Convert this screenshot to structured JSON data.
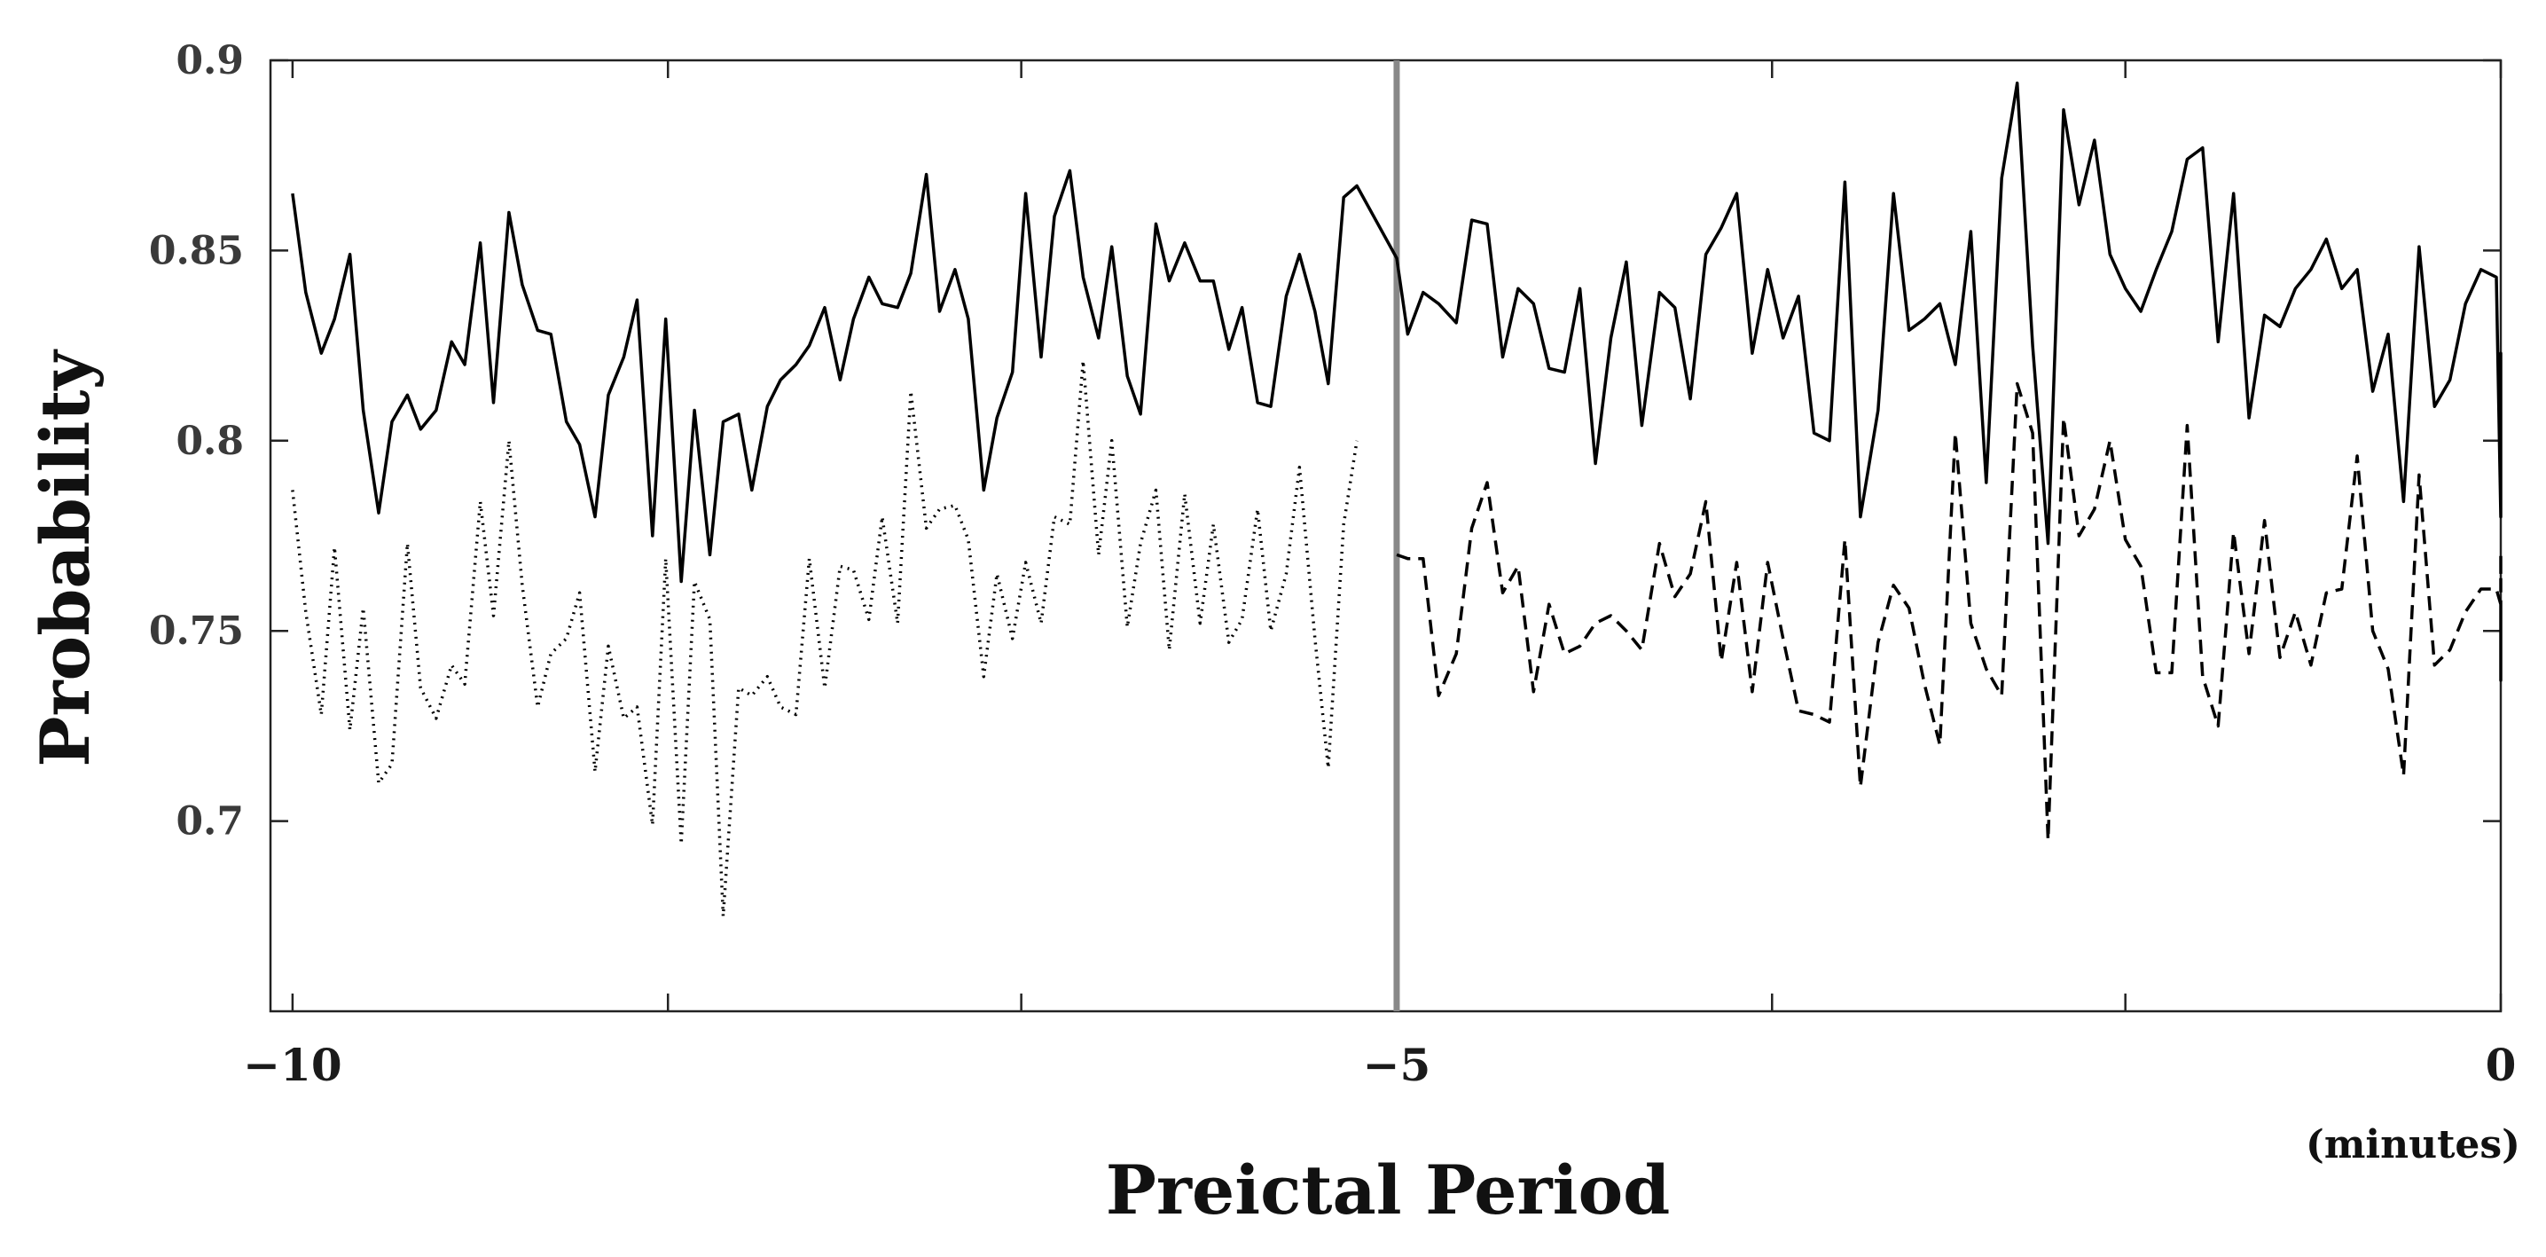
{
  "chart_data": {
    "type": "line",
    "xlabel": "Preictal Period",
    "ylabel": "Probability",
    "x_unit": "(minutes)",
    "xlim": [
      -10.1,
      0
    ],
    "ylim": [
      0.65,
      0.9
    ],
    "x_ticks": [
      -10,
      -5,
      0
    ],
    "x_tick_labels": [
      "−10",
      "−5",
      "0"
    ],
    "x_minor_ticks": [
      -10,
      -8.3,
      -6.7,
      -5,
      -3.3,
      -1.7,
      0
    ],
    "y_ticks": [
      0.7,
      0.75,
      0.8,
      0.85,
      0.9
    ],
    "y_tick_labels": [
      "0.7",
      "0.75",
      "0.8",
      "0.85",
      "0.9"
    ],
    "grid": false,
    "vertical_line": {
      "x": -5,
      "color": "#888888"
    },
    "series": [
      {
        "style": "solid",
        "color": "#000000",
        "points": [
          [
            -10.0,
            0.865
          ],
          [
            -9.94,
            0.839
          ],
          [
            -9.87,
            0.823
          ],
          [
            -9.81,
            0.832
          ],
          [
            -9.74,
            0.849
          ],
          [
            -9.68,
            0.808
          ],
          [
            -9.61,
            0.781
          ],
          [
            -9.55,
            0.805
          ],
          [
            -9.48,
            0.812
          ],
          [
            -9.42,
            0.803
          ],
          [
            -9.35,
            0.808
          ],
          [
            -9.28,
            0.826
          ],
          [
            -9.22,
            0.82
          ],
          [
            -9.15,
            0.852
          ],
          [
            -9.09,
            0.81
          ],
          [
            -9.02,
            0.86
          ],
          [
            -8.96,
            0.841
          ],
          [
            -8.89,
            0.829
          ],
          [
            -8.83,
            0.828
          ],
          [
            -8.76,
            0.805
          ],
          [
            -8.7,
            0.799
          ],
          [
            -8.63,
            0.78
          ],
          [
            -8.57,
            0.812
          ],
          [
            -8.5,
            0.822
          ],
          [
            -8.44,
            0.837
          ],
          [
            -8.37,
            0.775
          ],
          [
            -8.31,
            0.832
          ],
          [
            -8.24,
            0.763
          ],
          [
            -8.18,
            0.808
          ],
          [
            -8.11,
            0.77
          ],
          [
            -8.05,
            0.805
          ],
          [
            -7.98,
            0.807
          ],
          [
            -7.92,
            0.787
          ],
          [
            -7.85,
            0.809
          ],
          [
            -7.79,
            0.816
          ],
          [
            -7.72,
            0.82
          ],
          [
            -7.66,
            0.825
          ],
          [
            -7.59,
            0.835
          ],
          [
            -7.52,
            0.816
          ],
          [
            -7.46,
            0.832
          ],
          [
            -7.39,
            0.843
          ],
          [
            -7.33,
            0.836
          ],
          [
            -7.26,
            0.835
          ],
          [
            -7.2,
            0.844
          ],
          [
            -7.13,
            0.87
          ],
          [
            -7.07,
            0.834
          ],
          [
            -7.0,
            0.845
          ],
          [
            -6.94,
            0.832
          ],
          [
            -6.87,
            0.787
          ],
          [
            -6.81,
            0.806
          ],
          [
            -6.74,
            0.818
          ],
          [
            -6.68,
            0.865
          ],
          [
            -6.61,
            0.822
          ],
          [
            -6.55,
            0.859
          ],
          [
            -6.48,
            0.871
          ],
          [
            -6.42,
            0.843
          ],
          [
            -6.35,
            0.827
          ],
          [
            -6.29,
            0.851
          ],
          [
            -6.22,
            0.817
          ],
          [
            -6.16,
            0.807
          ],
          [
            -6.09,
            0.857
          ],
          [
            -6.03,
            0.842
          ],
          [
            -5.96,
            0.852
          ],
          [
            -5.89,
            0.842
          ],
          [
            -5.83,
            0.842
          ],
          [
            -5.76,
            0.824
          ],
          [
            -5.7,
            0.835
          ],
          [
            -5.63,
            0.81
          ],
          [
            -5.57,
            0.809
          ],
          [
            -5.5,
            0.838
          ],
          [
            -5.44,
            0.849
          ],
          [
            -5.37,
            0.834
          ],
          [
            -5.31,
            0.815
          ],
          [
            -5.24,
            0.864
          ],
          [
            -5.18,
            0.867
          ],
          [
            -5.0,
            0.848
          ],
          [
            -4.95,
            0.828
          ],
          [
            -4.88,
            0.839
          ],
          [
            -4.81,
            0.836
          ],
          [
            -4.73,
            0.831
          ],
          [
            -4.66,
            0.858
          ],
          [
            -4.59,
            0.857
          ],
          [
            -4.52,
            0.822
          ],
          [
            -4.45,
            0.84
          ],
          [
            -4.38,
            0.836
          ],
          [
            -4.31,
            0.819
          ],
          [
            -4.24,
            0.818
          ],
          [
            -4.17,
            0.84
          ],
          [
            -4.1,
            0.794
          ],
          [
            -4.03,
            0.827
          ],
          [
            -3.96,
            0.847
          ],
          [
            -3.89,
            0.804
          ],
          [
            -3.81,
            0.839
          ],
          [
            -3.74,
            0.835
          ],
          [
            -3.67,
            0.811
          ],
          [
            -3.6,
            0.849
          ],
          [
            -3.53,
            0.856
          ],
          [
            -3.46,
            0.865
          ],
          [
            -3.39,
            0.823
          ],
          [
            -3.32,
            0.845
          ],
          [
            -3.25,
            0.827
          ],
          [
            -3.18,
            0.838
          ],
          [
            -3.11,
            0.802
          ],
          [
            -3.04,
            0.8
          ],
          [
            -2.97,
            0.868
          ],
          [
            -2.9,
            0.78
          ],
          [
            -2.82,
            0.808
          ],
          [
            -2.75,
            0.865
          ],
          [
            -2.68,
            0.829
          ],
          [
            -2.61,
            0.832
          ],
          [
            -2.54,
            0.836
          ],
          [
            -2.47,
            0.82
          ],
          [
            -2.4,
            0.855
          ],
          [
            -2.33,
            0.789
          ],
          [
            -2.26,
            0.869
          ],
          [
            -2.19,
            0.894
          ],
          [
            -2.12,
            0.825
          ],
          [
            -2.05,
            0.773
          ],
          [
            -1.98,
            0.887
          ],
          [
            -1.91,
            0.862
          ],
          [
            -1.84,
            0.879
          ],
          [
            -1.77,
            0.849
          ],
          [
            -1.7,
            0.84
          ],
          [
            -1.63,
            0.834
          ],
          [
            -1.56,
            0.845
          ],
          [
            -1.49,
            0.855
          ],
          [
            -1.42,
            0.874
          ],
          [
            -1.35,
            0.877
          ],
          [
            -1.28,
            0.826
          ],
          [
            -1.21,
            0.865
          ],
          [
            -1.14,
            0.806
          ],
          [
            -1.07,
            0.833
          ],
          [
            -1.0,
            0.83
          ],
          [
            -0.93,
            0.84
          ],
          [
            -0.86,
            0.845
          ],
          [
            -0.79,
            0.853
          ],
          [
            -0.72,
            0.84
          ],
          [
            -0.65,
            0.845
          ],
          [
            -0.58,
            0.813
          ],
          [
            -0.51,
            0.828
          ],
          [
            -0.44,
            0.784
          ],
          [
            -0.37,
            0.851
          ],
          [
            -0.3,
            0.809
          ],
          [
            -0.23,
            0.816
          ],
          [
            -0.16,
            0.836
          ],
          [
            -0.09,
            0.845
          ],
          [
            -0.02,
            0.843
          ],
          [
            0.05,
            0.78
          ],
          [
            0.12,
            0.823
          ],
          [
            0.18,
            0.811
          ]
        ]
      },
      {
        "style": "dotted",
        "color": "#000000",
        "points": [
          [
            -10.0,
            0.787
          ],
          [
            -9.94,
            0.755
          ],
          [
            -9.87,
            0.728
          ],
          [
            -9.81,
            0.772
          ],
          [
            -9.74,
            0.724
          ],
          [
            -9.68,
            0.756
          ],
          [
            -9.61,
            0.71
          ],
          [
            -9.55,
            0.715
          ],
          [
            -9.48,
            0.773
          ],
          [
            -9.42,
            0.735
          ],
          [
            -9.35,
            0.727
          ],
          [
            -9.28,
            0.741
          ],
          [
            -9.22,
            0.736
          ],
          [
            -9.15,
            0.784
          ],
          [
            -9.09,
            0.754
          ],
          [
            -9.02,
            0.8
          ],
          [
            -8.96,
            0.762
          ],
          [
            -8.89,
            0.73
          ],
          [
            -8.83,
            0.744
          ],
          [
            -8.76,
            0.748
          ],
          [
            -8.7,
            0.76
          ],
          [
            -8.63,
            0.713
          ],
          [
            -8.57,
            0.746
          ],
          [
            -8.5,
            0.727
          ],
          [
            -8.44,
            0.73
          ],
          [
            -8.37,
            0.699
          ],
          [
            -8.31,
            0.769
          ],
          [
            -8.24,
            0.694
          ],
          [
            -8.18,
            0.763
          ],
          [
            -8.11,
            0.753
          ],
          [
            -8.05,
            0.675
          ],
          [
            -7.98,
            0.735
          ],
          [
            -7.92,
            0.733
          ],
          [
            -7.85,
            0.738
          ],
          [
            -7.79,
            0.73
          ],
          [
            -7.72,
            0.728
          ],
          [
            -7.66,
            0.769
          ],
          [
            -7.59,
            0.735
          ],
          [
            -7.52,
            0.767
          ],
          [
            -7.46,
            0.766
          ],
          [
            -7.39,
            0.753
          ],
          [
            -7.33,
            0.78
          ],
          [
            -7.26,
            0.752
          ],
          [
            -7.2,
            0.813
          ],
          [
            -7.13,
            0.777
          ],
          [
            -7.07,
            0.782
          ],
          [
            -7.0,
            0.783
          ],
          [
            -6.94,
            0.774
          ],
          [
            -6.87,
            0.738
          ],
          [
            -6.81,
            0.765
          ],
          [
            -6.74,
            0.748
          ],
          [
            -6.68,
            0.768
          ],
          [
            -6.61,
            0.752
          ],
          [
            -6.55,
            0.78
          ],
          [
            -6.48,
            0.778
          ],
          [
            -6.42,
            0.821
          ],
          [
            -6.35,
            0.77
          ],
          [
            -6.29,
            0.8
          ],
          [
            -6.22,
            0.751
          ],
          [
            -6.16,
            0.773
          ],
          [
            -6.09,
            0.787
          ],
          [
            -6.03,
            0.745
          ],
          [
            -5.96,
            0.786
          ],
          [
            -5.89,
            0.752
          ],
          [
            -5.83,
            0.778
          ],
          [
            -5.76,
            0.747
          ],
          [
            -5.7,
            0.753
          ],
          [
            -5.63,
            0.782
          ],
          [
            -5.57,
            0.75
          ],
          [
            -5.5,
            0.765
          ],
          [
            -5.44,
            0.793
          ],
          [
            -5.37,
            0.748
          ],
          [
            -5.31,
            0.714
          ],
          [
            -5.24,
            0.778
          ],
          [
            -5.18,
            0.8
          ]
        ]
      },
      {
        "style": "dashed",
        "color": "#000000",
        "points": [
          [
            -5.0,
            0.77
          ],
          [
            -4.95,
            0.769
          ],
          [
            -4.88,
            0.769
          ],
          [
            -4.81,
            0.733
          ],
          [
            -4.73,
            0.744
          ],
          [
            -4.66,
            0.777
          ],
          [
            -4.59,
            0.789
          ],
          [
            -4.52,
            0.76
          ],
          [
            -4.45,
            0.767
          ],
          [
            -4.38,
            0.734
          ],
          [
            -4.31,
            0.757
          ],
          [
            -4.24,
            0.744
          ],
          [
            -4.17,
            0.746
          ],
          [
            -4.1,
            0.752
          ],
          [
            -4.03,
            0.754
          ],
          [
            -3.96,
            0.75
          ],
          [
            -3.89,
            0.745
          ],
          [
            -3.81,
            0.773
          ],
          [
            -3.74,
            0.759
          ],
          [
            -3.67,
            0.765
          ],
          [
            -3.6,
            0.784
          ],
          [
            -3.53,
            0.742
          ],
          [
            -3.46,
            0.768
          ],
          [
            -3.39,
            0.734
          ],
          [
            -3.32,
            0.768
          ],
          [
            -3.25,
            0.748
          ],
          [
            -3.18,
            0.729
          ],
          [
            -3.11,
            0.728
          ],
          [
            -3.04,
            0.726
          ],
          [
            -2.97,
            0.774
          ],
          [
            -2.9,
            0.709
          ],
          [
            -2.82,
            0.747
          ],
          [
            -2.75,
            0.762
          ],
          [
            -2.68,
            0.756
          ],
          [
            -2.61,
            0.736
          ],
          [
            -2.54,
            0.72
          ],
          [
            -2.47,
            0.802
          ],
          [
            -2.4,
            0.752
          ],
          [
            -2.33,
            0.74
          ],
          [
            -2.26,
            0.733
          ],
          [
            -2.19,
            0.815
          ],
          [
            -2.12,
            0.802
          ],
          [
            -2.05,
            0.695
          ],
          [
            -1.98,
            0.806
          ],
          [
            -1.91,
            0.775
          ],
          [
            -1.84,
            0.782
          ],
          [
            -1.77,
            0.8
          ],
          [
            -1.7,
            0.774
          ],
          [
            -1.63,
            0.767
          ],
          [
            -1.56,
            0.739
          ],
          [
            -1.49,
            0.739
          ],
          [
            -1.42,
            0.804
          ],
          [
            -1.35,
            0.738
          ],
          [
            -1.28,
            0.725
          ],
          [
            -1.21,
            0.776
          ],
          [
            -1.14,
            0.744
          ],
          [
            -1.07,
            0.779
          ],
          [
            -1.0,
            0.743
          ],
          [
            -0.93,
            0.755
          ],
          [
            -0.86,
            0.741
          ],
          [
            -0.79,
            0.76
          ],
          [
            -0.72,
            0.761
          ],
          [
            -0.65,
            0.796
          ],
          [
            -0.58,
            0.75
          ],
          [
            -0.51,
            0.74
          ],
          [
            -0.44,
            0.712
          ],
          [
            -0.37,
            0.791
          ],
          [
            -0.3,
            0.741
          ],
          [
            -0.23,
            0.745
          ],
          [
            -0.16,
            0.755
          ],
          [
            -0.09,
            0.761
          ],
          [
            -0.02,
            0.761
          ],
          [
            0.05,
            0.757
          ],
          [
            0.12,
            0.737
          ],
          [
            0.18,
            0.77
          ],
          [
            0.25,
            0.765
          ]
        ]
      }
    ]
  }
}
